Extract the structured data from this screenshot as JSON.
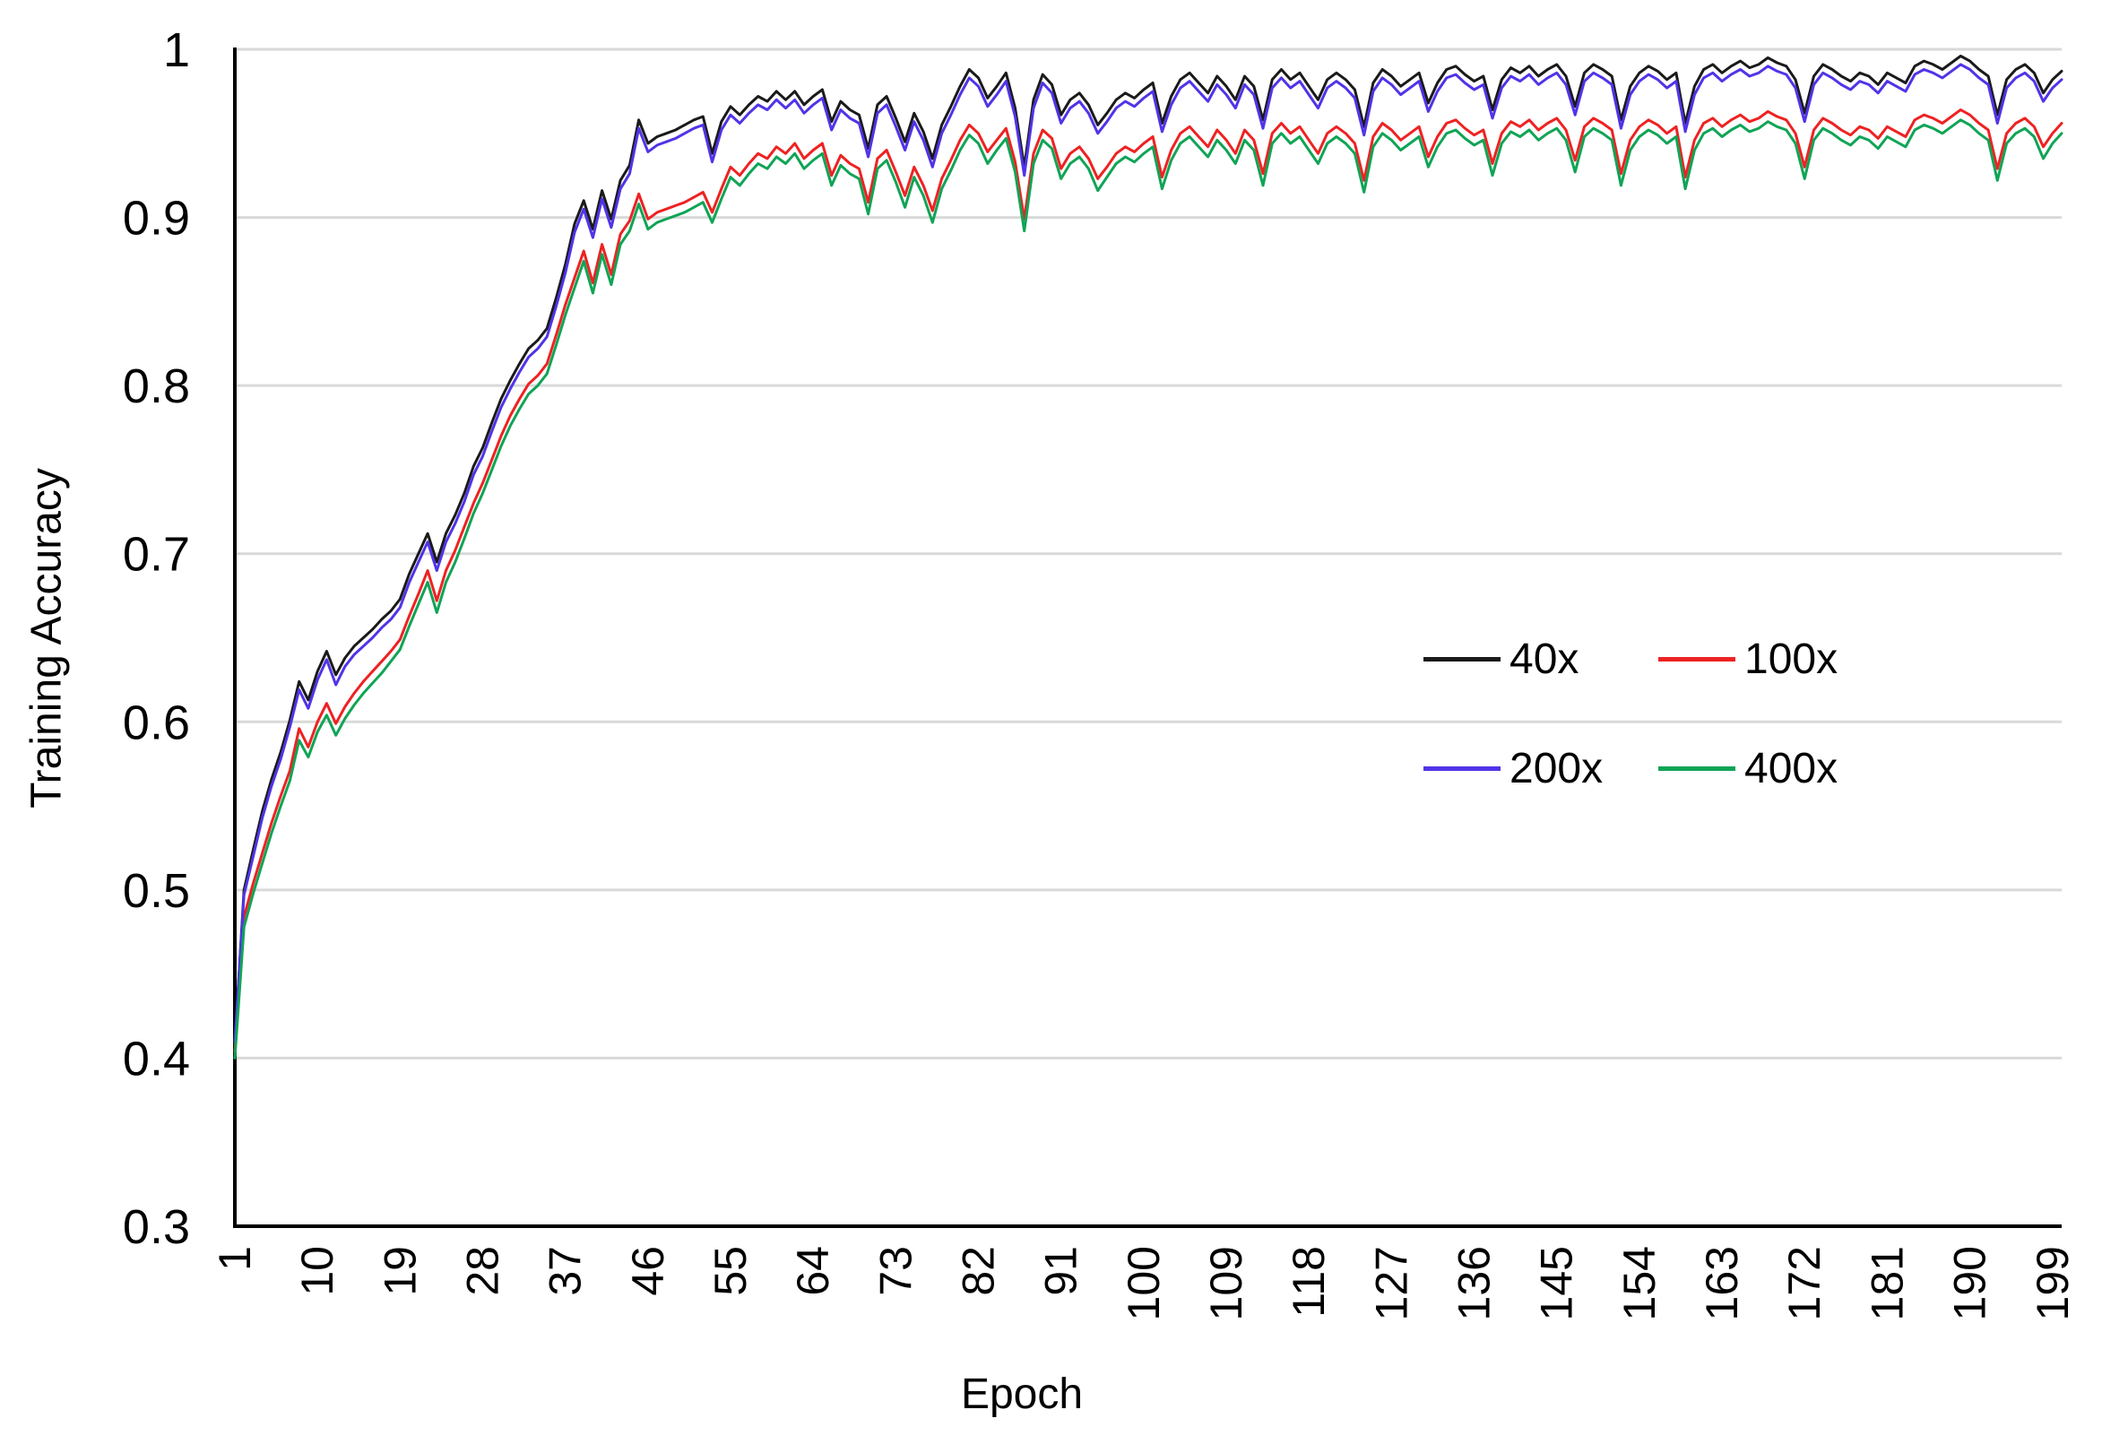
{
  "chart_data": {
    "type": "line",
    "title": "",
    "xlabel": "Epoch",
    "ylabel": "Training Accuracy",
    "epochs": 200,
    "x_start": 1,
    "x_step": 1,
    "xlim": [
      1,
      200
    ],
    "ylim": [
      0.3,
      1.0
    ],
    "grid": "horizontal",
    "grid_color": "#d9d9d9",
    "axis_color": "#000000",
    "legend_position": "inside-right",
    "x_ticks": [
      1,
      10,
      19,
      28,
      37,
      46,
      55,
      64,
      73,
      82,
      91,
      100,
      109,
      118,
      127,
      136,
      145,
      154,
      163,
      172,
      181,
      190,
      199
    ],
    "y_ticks": [
      1,
      0.9,
      0.8,
      0.7,
      0.6,
      0.5,
      0.4,
      0.3
    ],
    "y_tick_labels": [
      "1",
      "0.9",
      "0.8",
      "0.7",
      "0.6",
      "0.5",
      "0.4",
      "0.3"
    ],
    "series": [
      {
        "name": "40x",
        "color": "#1a1a1a",
        "values": [
          0.408,
          0.5,
          0.524,
          0.547,
          0.566,
          0.582,
          0.601,
          0.624,
          0.613,
          0.63,
          0.642,
          0.628,
          0.638,
          0.645,
          0.65,
          0.655,
          0.661,
          0.666,
          0.673,
          0.688,
          0.7,
          0.712,
          0.695,
          0.712,
          0.723,
          0.736,
          0.752,
          0.763,
          0.778,
          0.792,
          0.803,
          0.813,
          0.822,
          0.827,
          0.834,
          0.852,
          0.872,
          0.896,
          0.91,
          0.893,
          0.916,
          0.899,
          0.922,
          0.931,
          0.958,
          0.944,
          0.948,
          0.95,
          0.952,
          0.955,
          0.958,
          0.96,
          0.938,
          0.957,
          0.966,
          0.961,
          0.967,
          0.972,
          0.969,
          0.975,
          0.97,
          0.975,
          0.967,
          0.972,
          0.976,
          0.957,
          0.969,
          0.964,
          0.961,
          0.941,
          0.967,
          0.972,
          0.959,
          0.945,
          0.962,
          0.951,
          0.935,
          0.955,
          0.966,
          0.978,
          0.988,
          0.983,
          0.971,
          0.978,
          0.986,
          0.965,
          0.93,
          0.97,
          0.985,
          0.979,
          0.961,
          0.97,
          0.974,
          0.967,
          0.955,
          0.962,
          0.97,
          0.974,
          0.971,
          0.976,
          0.98,
          0.956,
          0.972,
          0.982,
          0.986,
          0.98,
          0.974,
          0.984,
          0.978,
          0.97,
          0.984,
          0.978,
          0.958,
          0.982,
          0.988,
          0.982,
          0.986,
          0.978,
          0.97,
          0.982,
          0.986,
          0.982,
          0.976,
          0.954,
          0.98,
          0.988,
          0.984,
          0.978,
          0.982,
          0.986,
          0.968,
          0.98,
          0.988,
          0.99,
          0.985,
          0.981,
          0.984,
          0.964,
          0.982,
          0.989,
          0.986,
          0.99,
          0.984,
          0.988,
          0.991,
          0.984,
          0.966,
          0.986,
          0.991,
          0.988,
          0.984,
          0.958,
          0.978,
          0.986,
          0.99,
          0.987,
          0.982,
          0.986,
          0.956,
          0.978,
          0.988,
          0.991,
          0.986,
          0.99,
          0.993,
          0.989,
          0.991,
          0.995,
          0.992,
          0.99,
          0.982,
          0.962,
          0.984,
          0.991,
          0.988,
          0.984,
          0.981,
          0.986,
          0.984,
          0.979,
          0.986,
          0.983,
          0.98,
          0.99,
          0.993,
          0.991,
          0.988,
          0.992,
          0.996,
          0.993,
          0.988,
          0.984,
          0.961,
          0.982,
          0.988,
          0.991,
          0.986,
          0.974,
          0.982,
          0.987
        ]
      },
      {
        "name": "100x",
        "color": "#ee2222",
        "values": [
          0.404,
          0.484,
          0.504,
          0.522,
          0.54,
          0.556,
          0.571,
          0.596,
          0.585,
          0.6,
          0.611,
          0.599,
          0.609,
          0.617,
          0.624,
          0.63,
          0.636,
          0.642,
          0.649,
          0.663,
          0.676,
          0.69,
          0.672,
          0.69,
          0.702,
          0.716,
          0.73,
          0.742,
          0.756,
          0.77,
          0.782,
          0.792,
          0.801,
          0.806,
          0.813,
          0.83,
          0.848,
          0.864,
          0.88,
          0.861,
          0.884,
          0.866,
          0.89,
          0.898,
          0.914,
          0.899,
          0.903,
          0.905,
          0.907,
          0.909,
          0.912,
          0.915,
          0.903,
          0.917,
          0.93,
          0.925,
          0.932,
          0.938,
          0.935,
          0.942,
          0.938,
          0.944,
          0.935,
          0.94,
          0.944,
          0.925,
          0.937,
          0.932,
          0.929,
          0.909,
          0.935,
          0.94,
          0.927,
          0.913,
          0.93,
          0.919,
          0.904,
          0.923,
          0.934,
          0.946,
          0.955,
          0.95,
          0.939,
          0.946,
          0.953,
          0.933,
          0.899,
          0.938,
          0.952,
          0.947,
          0.929,
          0.938,
          0.942,
          0.935,
          0.923,
          0.93,
          0.938,
          0.942,
          0.939,
          0.944,
          0.948,
          0.924,
          0.94,
          0.95,
          0.954,
          0.948,
          0.942,
          0.952,
          0.946,
          0.938,
          0.952,
          0.946,
          0.926,
          0.95,
          0.956,
          0.95,
          0.954,
          0.946,
          0.938,
          0.95,
          0.954,
          0.95,
          0.944,
          0.922,
          0.948,
          0.956,
          0.952,
          0.946,
          0.95,
          0.954,
          0.936,
          0.948,
          0.956,
          0.958,
          0.953,
          0.949,
          0.952,
          0.932,
          0.95,
          0.957,
          0.954,
          0.958,
          0.952,
          0.956,
          0.959,
          0.952,
          0.934,
          0.954,
          0.959,
          0.956,
          0.952,
          0.926,
          0.946,
          0.954,
          0.958,
          0.955,
          0.95,
          0.954,
          0.924,
          0.946,
          0.956,
          0.959,
          0.954,
          0.958,
          0.961,
          0.957,
          0.959,
          0.963,
          0.96,
          0.958,
          0.95,
          0.93,
          0.952,
          0.959,
          0.956,
          0.952,
          0.949,
          0.954,
          0.952,
          0.947,
          0.954,
          0.951,
          0.948,
          0.958,
          0.961,
          0.959,
          0.956,
          0.96,
          0.964,
          0.961,
          0.956,
          0.952,
          0.929,
          0.95,
          0.956,
          0.959,
          0.954,
          0.942,
          0.95,
          0.956
        ]
      },
      {
        "name": "200x",
        "color": "#5034e8",
        "values": [
          0.41,
          0.497,
          0.52,
          0.543,
          0.562,
          0.578,
          0.597,
          0.619,
          0.608,
          0.625,
          0.637,
          0.622,
          0.633,
          0.64,
          0.645,
          0.65,
          0.656,
          0.661,
          0.668,
          0.683,
          0.695,
          0.707,
          0.69,
          0.707,
          0.718,
          0.731,
          0.747,
          0.758,
          0.773,
          0.787,
          0.798,
          0.808,
          0.817,
          0.822,
          0.829,
          0.847,
          0.867,
          0.891,
          0.905,
          0.888,
          0.911,
          0.894,
          0.917,
          0.926,
          0.953,
          0.939,
          0.943,
          0.945,
          0.947,
          0.95,
          0.953,
          0.955,
          0.933,
          0.952,
          0.961,
          0.956,
          0.962,
          0.967,
          0.964,
          0.97,
          0.965,
          0.97,
          0.962,
          0.967,
          0.971,
          0.952,
          0.964,
          0.959,
          0.956,
          0.936,
          0.962,
          0.967,
          0.954,
          0.94,
          0.957,
          0.946,
          0.93,
          0.95,
          0.961,
          0.973,
          0.983,
          0.978,
          0.966,
          0.973,
          0.981,
          0.96,
          0.925,
          0.965,
          0.98,
          0.974,
          0.956,
          0.965,
          0.969,
          0.962,
          0.95,
          0.957,
          0.965,
          0.969,
          0.966,
          0.971,
          0.975,
          0.951,
          0.967,
          0.977,
          0.981,
          0.975,
          0.969,
          0.979,
          0.973,
          0.965,
          0.979,
          0.973,
          0.953,
          0.977,
          0.983,
          0.977,
          0.981,
          0.973,
          0.965,
          0.977,
          0.981,
          0.977,
          0.971,
          0.949,
          0.975,
          0.983,
          0.979,
          0.973,
          0.977,
          0.981,
          0.963,
          0.975,
          0.983,
          0.985,
          0.98,
          0.976,
          0.979,
          0.959,
          0.977,
          0.984,
          0.981,
          0.985,
          0.979,
          0.983,
          0.986,
          0.979,
          0.961,
          0.981,
          0.986,
          0.983,
          0.979,
          0.953,
          0.973,
          0.981,
          0.985,
          0.982,
          0.977,
          0.981,
          0.951,
          0.973,
          0.983,
          0.986,
          0.981,
          0.985,
          0.988,
          0.984,
          0.986,
          0.99,
          0.987,
          0.985,
          0.977,
          0.957,
          0.979,
          0.986,
          0.983,
          0.979,
          0.976,
          0.981,
          0.979,
          0.974,
          0.981,
          0.978,
          0.975,
          0.985,
          0.988,
          0.986,
          0.983,
          0.987,
          0.991,
          0.988,
          0.983,
          0.979,
          0.956,
          0.977,
          0.983,
          0.986,
          0.981,
          0.969,
          0.977,
          0.982
        ]
      },
      {
        "name": "400x",
        "color": "#10a456",
        "values": [
          0.4,
          0.478,
          0.498,
          0.516,
          0.534,
          0.55,
          0.565,
          0.589,
          0.579,
          0.594,
          0.604,
          0.592,
          0.602,
          0.61,
          0.617,
          0.623,
          0.629,
          0.636,
          0.643,
          0.657,
          0.67,
          0.683,
          0.665,
          0.683,
          0.695,
          0.709,
          0.724,
          0.736,
          0.75,
          0.764,
          0.776,
          0.786,
          0.795,
          0.8,
          0.807,
          0.824,
          0.842,
          0.858,
          0.874,
          0.855,
          0.878,
          0.86,
          0.884,
          0.892,
          0.908,
          0.893,
          0.897,
          0.899,
          0.901,
          0.903,
          0.906,
          0.909,
          0.897,
          0.911,
          0.924,
          0.919,
          0.926,
          0.932,
          0.929,
          0.936,
          0.932,
          0.938,
          0.929,
          0.934,
          0.938,
          0.919,
          0.931,
          0.926,
          0.923,
          0.902,
          0.929,
          0.934,
          0.921,
          0.906,
          0.924,
          0.913,
          0.897,
          0.917,
          0.928,
          0.94,
          0.949,
          0.944,
          0.932,
          0.94,
          0.947,
          0.927,
          0.892,
          0.932,
          0.946,
          0.941,
          0.923,
          0.932,
          0.936,
          0.929,
          0.916,
          0.924,
          0.932,
          0.936,
          0.933,
          0.938,
          0.942,
          0.917,
          0.934,
          0.944,
          0.948,
          0.942,
          0.936,
          0.946,
          0.94,
          0.932,
          0.946,
          0.94,
          0.919,
          0.944,
          0.95,
          0.944,
          0.948,
          0.94,
          0.932,
          0.944,
          0.948,
          0.944,
          0.938,
          0.915,
          0.942,
          0.95,
          0.946,
          0.94,
          0.944,
          0.948,
          0.93,
          0.942,
          0.95,
          0.952,
          0.947,
          0.943,
          0.946,
          0.925,
          0.944,
          0.951,
          0.948,
          0.952,
          0.946,
          0.95,
          0.953,
          0.946,
          0.927,
          0.948,
          0.953,
          0.95,
          0.946,
          0.919,
          0.94,
          0.948,
          0.952,
          0.949,
          0.944,
          0.948,
          0.917,
          0.94,
          0.95,
          0.953,
          0.948,
          0.952,
          0.955,
          0.951,
          0.953,
          0.957,
          0.954,
          0.952,
          0.944,
          0.923,
          0.946,
          0.953,
          0.95,
          0.946,
          0.943,
          0.948,
          0.946,
          0.941,
          0.948,
          0.945,
          0.942,
          0.952,
          0.955,
          0.953,
          0.95,
          0.954,
          0.958,
          0.955,
          0.95,
          0.946,
          0.922,
          0.944,
          0.95,
          0.953,
          0.948,
          0.935,
          0.944,
          0.95
        ]
      }
    ]
  }
}
